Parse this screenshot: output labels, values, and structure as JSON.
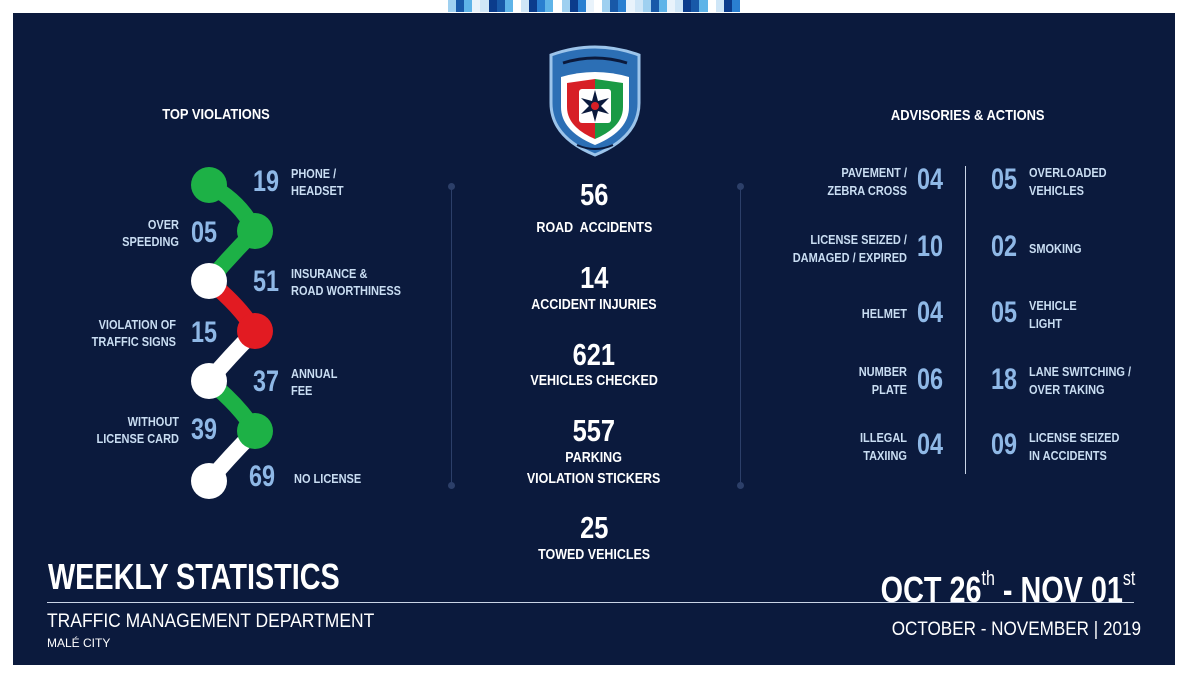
{
  "colors": {
    "background": "#0b1a3d",
    "accent_number": "#8fb8e6",
    "green": "#1db146",
    "red": "#e21b22",
    "white": "#ffffff"
  },
  "top_violations": {
    "title": "TOP VIOLATIONS",
    "items": [
      {
        "value": "19",
        "label": "PHONE /\nHEADSET"
      },
      {
        "value": "05",
        "label": "OVER\nSPEEDING"
      },
      {
        "value": "51",
        "label": "INSURANCE &\nROAD WORTHINESS"
      },
      {
        "value": "15",
        "label": "VIOLATION OF\nTRAFFIC SIGNS"
      },
      {
        "value": "37",
        "label": "ANNUAL\nFEE"
      },
      {
        "value": "39",
        "label": "WITHOUT\nLICENSE CARD"
      },
      {
        "value": "69",
        "label": "NO LICENSE"
      }
    ]
  },
  "center_stats": [
    {
      "value": "56",
      "label": "ROAD  ACCIDENTS"
    },
    {
      "value": "14",
      "label": "ACCIDENT INJURIES"
    },
    {
      "value": "621",
      "label": "VEHICLES CHECKED"
    },
    {
      "value": "557",
      "label": "PARKING\nVIOLATION STICKERS"
    },
    {
      "value": "25",
      "label": "TOWED VEHICLES"
    }
  ],
  "advisories": {
    "title": "ADVISORIES & ACTIONS",
    "left": [
      {
        "value": "04",
        "label": "PAVEMENT /\nZEBRA CROSS"
      },
      {
        "value": "10",
        "label": "LICENSE SEIZED /\nDAMAGED / EXPIRED"
      },
      {
        "value": "04",
        "label": "HELMET"
      },
      {
        "value": "06",
        "label": "NUMBER\nPLATE"
      },
      {
        "value": "04",
        "label": "ILLEGAL\nTAXIING"
      }
    ],
    "right": [
      {
        "value": "05",
        "label": "OVERLOADED\nVEHICLES"
      },
      {
        "value": "02",
        "label": "SMOKING"
      },
      {
        "value": "05",
        "label": "VEHICLE\nLIGHT"
      },
      {
        "value": "18",
        "label": "LANE SWITCHING /\nOVER TAKING"
      },
      {
        "value": "09",
        "label": "LICENSE SEIZED\nIN ACCIDENTS"
      }
    ]
  },
  "footer": {
    "title": "WEEKLY STATISTICS",
    "department": "TRAFFIC MANAGEMENT DEPARTMENT",
    "city": "MALÉ CITY",
    "date_start": "OCT 26",
    "date_start_suffix": "th",
    "date_sep": " - ",
    "date_end": "NOV 01",
    "date_end_suffix": "st",
    "months": "OCTOBER - NOVEMBER | 2019"
  },
  "logo": {
    "name": "police-shield-logo-icon"
  }
}
